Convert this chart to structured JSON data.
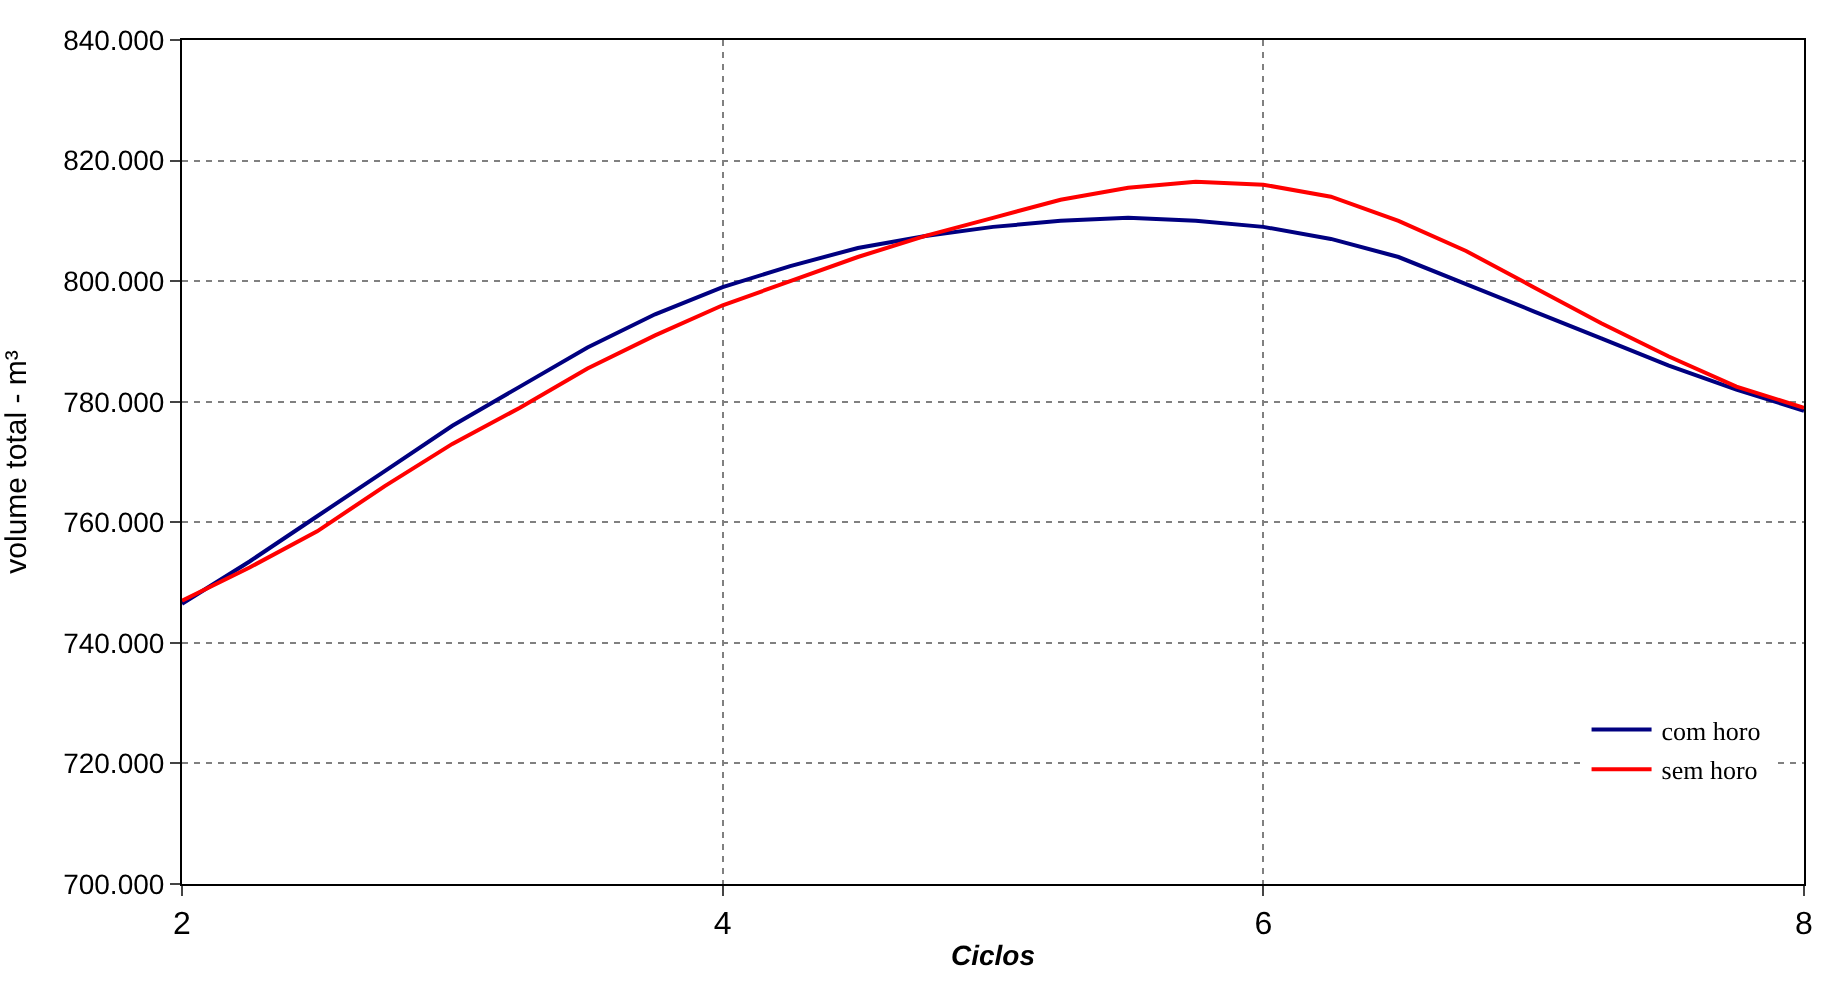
{
  "chart_data": {
    "type": "line",
    "xlabel": "Ciclos",
    "ylabel": "volume total - m³",
    "x": [
      2,
      2.25,
      2.5,
      2.75,
      3,
      3.25,
      3.5,
      3.75,
      4,
      4.25,
      4.5,
      4.75,
      5,
      5.25,
      5.5,
      5.75,
      6,
      6.25,
      6.5,
      6.75,
      7,
      7.25,
      7.5,
      7.75,
      8
    ],
    "series": [
      {
        "name": "com horo",
        "color": "#000080",
        "values": [
          746500,
          753500,
          761000,
          768500,
          776000,
          782500,
          789000,
          794500,
          799000,
          802500,
          805500,
          807500,
          809000,
          810000,
          810500,
          810000,
          809000,
          807000,
          804000,
          799500,
          795000,
          790500,
          786000,
          782000,
          778500
        ]
      },
      {
        "name": "sem horo",
        "color": "#ff0000",
        "values": [
          747000,
          752500,
          758500,
          766000,
          773000,
          779000,
          785500,
          791000,
          796000,
          800000,
          804000,
          807500,
          810500,
          813500,
          815500,
          816500,
          816000,
          814000,
          810000,
          805000,
          799000,
          793000,
          787500,
          782500,
          779000
        ]
      }
    ],
    "xlim": [
      2,
      8
    ],
    "xticks": [
      2,
      4,
      6,
      8
    ],
    "ylim": [
      700000,
      840000
    ],
    "yticks": [
      {
        "value": 700000,
        "label": "700.000"
      },
      {
        "value": 720000,
        "label": "720.000"
      },
      {
        "value": 740000,
        "label": "740.000"
      },
      {
        "value": 760000,
        "label": "760.000"
      },
      {
        "value": 780000,
        "label": "780.000"
      },
      {
        "value": 800000,
        "label": "800.000"
      },
      {
        "value": 820000,
        "label": "820.000"
      },
      {
        "value": 840000,
        "label": "840.000"
      }
    ],
    "grid": true,
    "legend": "bottom right",
    "marker": "none",
    "line_style": "solid"
  }
}
